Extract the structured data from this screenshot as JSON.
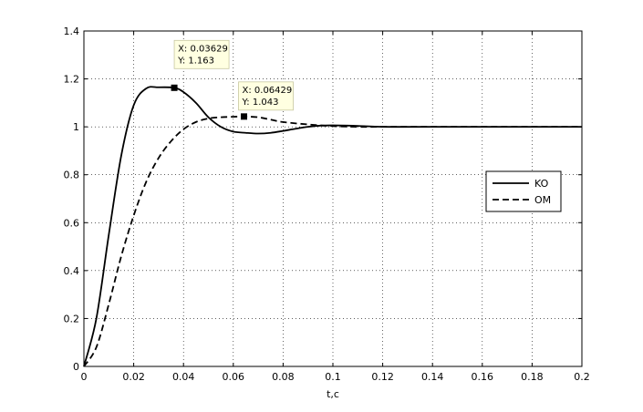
{
  "chart_data": {
    "type": "line",
    "xlabel": "t,c",
    "ylabel": "",
    "title": "",
    "xlim": [
      0,
      0.2
    ],
    "ylim": [
      0,
      1.4
    ],
    "xticks": [
      "0",
      "0.02",
      "0.04",
      "0.06",
      "0.08",
      "0.1",
      "0.12",
      "0.14",
      "0.16",
      "0.18",
      "0.2"
    ],
    "yticks": [
      "0",
      "0.2",
      "0.4",
      "0.6",
      "0.8",
      "1",
      "1.2",
      "1.4"
    ],
    "grid": true,
    "legend_position": "right",
    "series": [
      {
        "name": "KO",
        "style": "solid",
        "x": [
          0,
          0.005,
          0.01,
          0.015,
          0.02,
          0.025,
          0.03,
          0.03629,
          0.04,
          0.045,
          0.05,
          0.055,
          0.06,
          0.065,
          0.07,
          0.075,
          0.08,
          0.085,
          0.09,
          0.095,
          0.1,
          0.11,
          0.12,
          0.14,
          0.2
        ],
        "y": [
          0,
          0.2,
          0.55,
          0.88,
          1.09,
          1.16,
          1.165,
          1.163,
          1.145,
          1.1,
          1.04,
          1.0,
          0.98,
          0.975,
          0.972,
          0.975,
          0.983,
          0.992,
          1.0,
          1.005,
          1.006,
          1.004,
          1.0,
          1.0,
          1.0
        ]
      },
      {
        "name": "OM",
        "style": "dashed",
        "x": [
          0,
          0.005,
          0.01,
          0.015,
          0.02,
          0.025,
          0.03,
          0.035,
          0.04,
          0.045,
          0.05,
          0.055,
          0.06,
          0.06429,
          0.07,
          0.075,
          0.08,
          0.09,
          0.1,
          0.11,
          0.12,
          0.14,
          0.2
        ],
        "y": [
          0,
          0.08,
          0.26,
          0.46,
          0.63,
          0.77,
          0.87,
          0.94,
          0.99,
          1.02,
          1.035,
          1.04,
          1.042,
          1.043,
          1.04,
          1.03,
          1.02,
          1.01,
          1.003,
          1.0,
          1.0,
          1.0,
          1.0
        ]
      }
    ],
    "datatips": [
      {
        "series": "KO",
        "x": 0.03629,
        "y": 1.163,
        "xtext": "X: 0.03629",
        "ytext": "Y: 1.163"
      },
      {
        "series": "OM",
        "x": 0.06429,
        "y": 1.043,
        "xtext": "X: 0.06429",
        "ytext": "Y: 1.043"
      }
    ]
  }
}
